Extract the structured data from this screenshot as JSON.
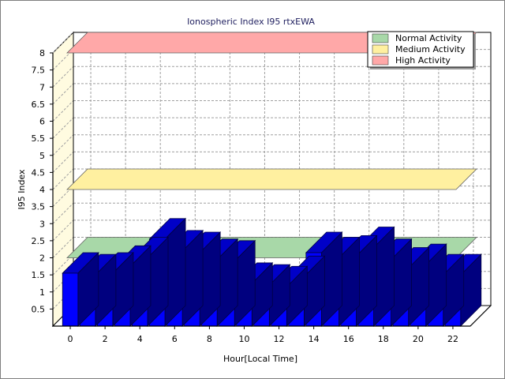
{
  "chart_data": {
    "type": "bar",
    "title": "Ionospheric Index I95 rtxEWA",
    "xlabel": "Hour[Local Time]",
    "ylabel": "I95 Index",
    "ylim": [
      0,
      8
    ],
    "xlim": [
      -1,
      23
    ],
    "x_ticks": [
      "0",
      "2",
      "4",
      "6",
      "8",
      "10",
      "12",
      "14",
      "16",
      "18",
      "20",
      "22"
    ],
    "y_ticks": [
      "0.5",
      "1",
      "1.5",
      "2",
      "2.5",
      "3",
      "3.5",
      "4",
      "4.5",
      "5",
      "5.5",
      "6",
      "6.5",
      "7",
      "7.5",
      "8"
    ],
    "grid": true,
    "legend_position": "top-right",
    "bar_color": "#0000ff",
    "x": [
      0,
      1,
      2,
      3,
      4,
      5,
      6,
      7,
      8,
      9,
      10,
      11,
      12,
      13,
      14,
      15,
      16,
      17,
      18,
      19,
      20,
      21,
      22
    ],
    "values": [
      1.55,
      1.5,
      1.55,
      1.75,
      2.0,
      2.55,
      2.2,
      2.15,
      1.95,
      1.9,
      1.25,
      1.2,
      1.15,
      1.45,
      2.15,
      2.0,
      2.05,
      2.3,
      1.95,
      1.7,
      1.8,
      1.5,
      1.5
    ],
    "bands": [
      {
        "name": "Normal Activity",
        "value": 2.0,
        "color": "#a8d8a8"
      },
      {
        "name": "Medium Activity",
        "value": 4.0,
        "color": "#fff0a0"
      },
      {
        "name": "High Activity",
        "value": 8.0,
        "color": "#ffa8a8"
      }
    ]
  }
}
